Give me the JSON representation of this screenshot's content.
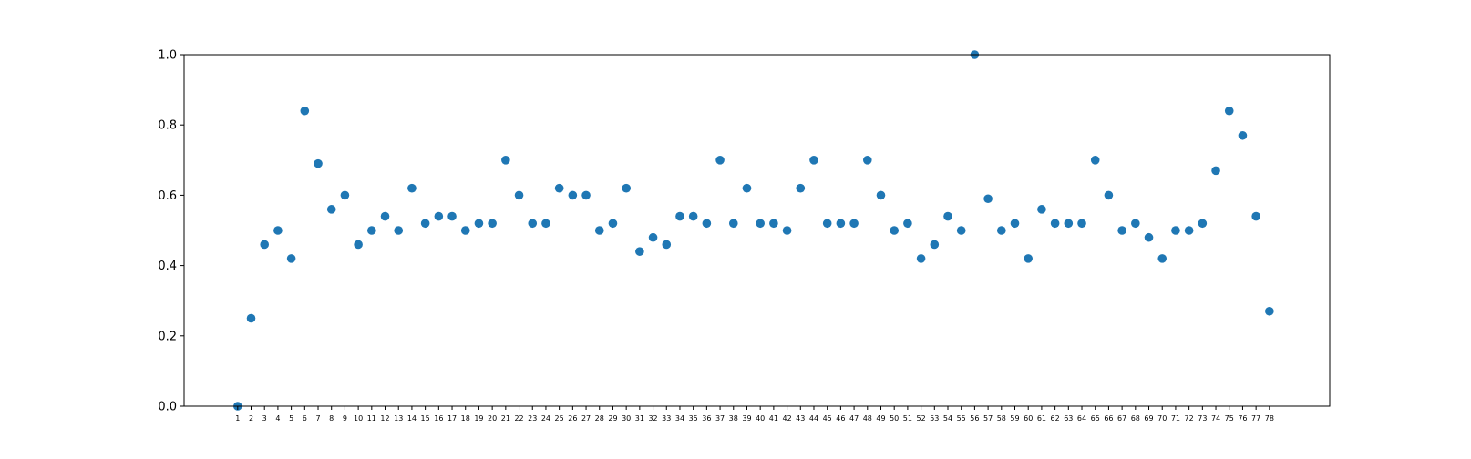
{
  "chart_data": {
    "type": "scatter",
    "title": "",
    "xlabel": "",
    "ylabel": "",
    "x": [
      1,
      2,
      3,
      4,
      5,
      6,
      7,
      8,
      9,
      10,
      11,
      12,
      13,
      14,
      15,
      16,
      17,
      18,
      19,
      20,
      21,
      22,
      23,
      24,
      25,
      26,
      27,
      28,
      29,
      30,
      31,
      32,
      33,
      34,
      35,
      36,
      37,
      38,
      39,
      40,
      41,
      42,
      43,
      44,
      45,
      46,
      47,
      48,
      49,
      50,
      51,
      52,
      53,
      54,
      55,
      56,
      57,
      58,
      59,
      60,
      61,
      62,
      63,
      64,
      65,
      66,
      67,
      68,
      69,
      70,
      71,
      72,
      73,
      74,
      75,
      76,
      77,
      78
    ],
    "x_tick_labels": [
      "1",
      "2",
      "3",
      "4",
      "5",
      "6",
      "7",
      "8",
      "9",
      "10",
      "11",
      "12",
      "13",
      "14",
      "15",
      "16",
      "17",
      "18",
      "19",
      "20",
      "21",
      "22",
      "23",
      "24",
      "25",
      "26",
      "27",
      "28",
      "29",
      "30",
      "31",
      "32",
      "33",
      "34",
      "35",
      "36",
      "37",
      "38",
      "39",
      "40",
      "41",
      "42",
      "43",
      "44",
      "45",
      "46",
      "47",
      "48",
      "49",
      "50",
      "51",
      "52",
      "53",
      "54",
      "55",
      "56",
      "57",
      "58",
      "59",
      "60",
      "61",
      "62",
      "63",
      "64",
      "65",
      "66",
      "67",
      "68",
      "69",
      "70",
      "71",
      "72",
      "73",
      "74",
      "75",
      "76",
      "77",
      "78"
    ],
    "y": [
      0.0,
      0.25,
      0.46,
      0.5,
      0.42,
      0.84,
      0.69,
      0.56,
      0.6,
      0.46,
      0.5,
      0.54,
      0.5,
      0.62,
      0.52,
      0.54,
      0.54,
      0.5,
      0.52,
      0.52,
      0.7,
      0.6,
      0.52,
      0.52,
      0.62,
      0.6,
      0.6,
      0.5,
      0.52,
      0.62,
      0.44,
      0.48,
      0.46,
      0.54,
      0.54,
      0.52,
      0.7,
      0.52,
      0.62,
      0.52,
      0.52,
      0.5,
      0.62,
      0.7,
      0.52,
      0.52,
      0.52,
      0.7,
      0.6,
      0.5,
      0.52,
      0.42,
      0.46,
      0.54,
      0.5,
      1.0,
      0.59,
      0.5,
      0.52,
      0.42,
      0.56,
      0.52,
      0.52,
      0.52,
      0.7,
      0.6,
      0.5,
      0.52,
      0.48,
      0.42,
      0.5,
      0.5,
      0.52,
      0.67,
      0.84,
      0.77,
      0.54,
      0.27
    ],
    "xlim": [
      -3,
      82.5
    ],
    "ylim": [
      0.0,
      1.0
    ],
    "y_ticks": [
      0.0,
      0.2,
      0.4,
      0.6,
      0.8,
      1.0
    ],
    "y_tick_labels": [
      "0.0",
      "0.2",
      "0.4",
      "0.6",
      "0.8",
      "1.0"
    ],
    "grid": false,
    "legend": "none",
    "marker_color": "#1f77b4"
  }
}
